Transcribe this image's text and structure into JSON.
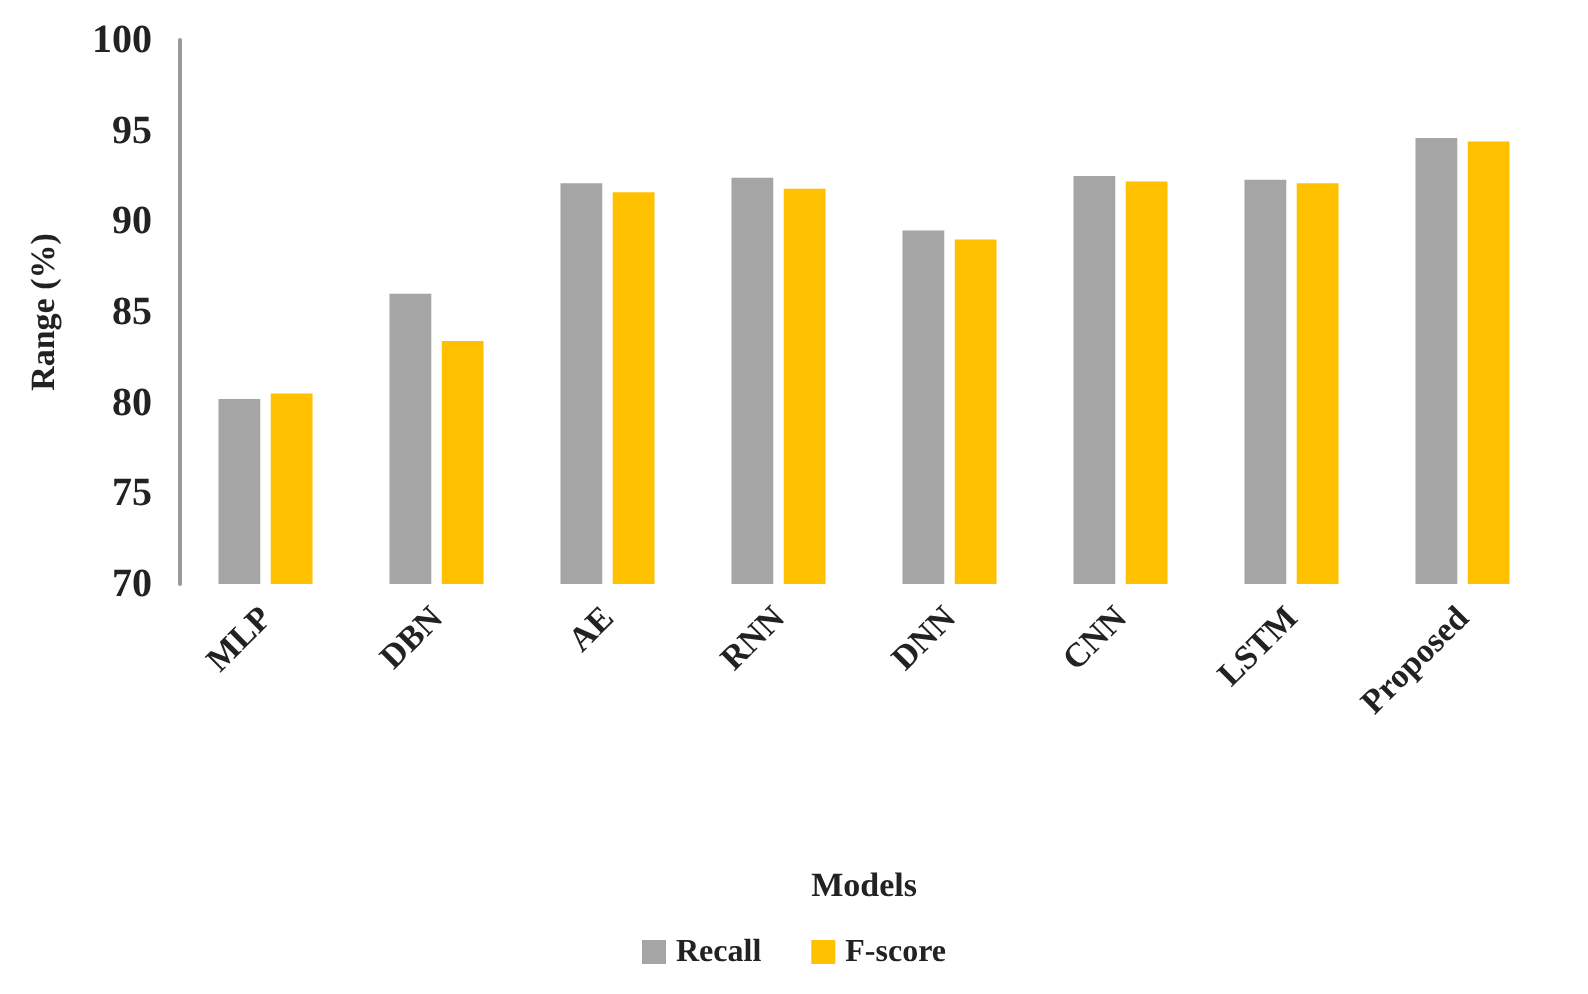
{
  "chart_data": {
    "type": "bar",
    "xlabel": "Models",
    "ylabel": "Range (%)",
    "categories": [
      "MLP",
      "DBN",
      "AE",
      "RNN",
      "DNN",
      "CNN",
      "LSTM",
      "Proposed"
    ],
    "series": [
      {
        "name": "Recall",
        "color": "#a5a5a5",
        "values": [
          80.2,
          86.0,
          92.1,
          92.4,
          89.5,
          92.5,
          92.3,
          94.6
        ]
      },
      {
        "name": "F-score",
        "color": "#ffc000",
        "values": [
          80.5,
          83.4,
          91.6,
          91.8,
          89.0,
          92.2,
          92.1,
          94.4
        ]
      }
    ],
    "ylim": [
      70,
      100
    ],
    "yticks": [
      70,
      75,
      80,
      85,
      90,
      95,
      100
    ],
    "grid": false,
    "legend": "bottom"
  }
}
